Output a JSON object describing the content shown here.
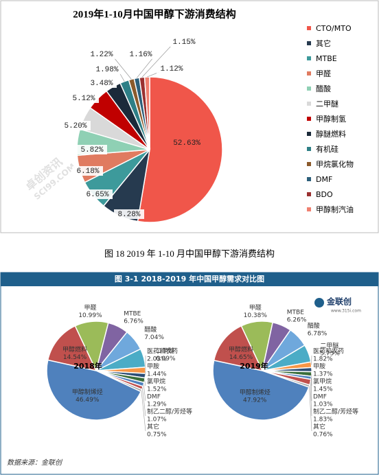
{
  "chart_data": [
    {
      "type": "pie",
      "title": "2019年1-10月中国甲醇下游消费结构",
      "categories": [
        "CTO/MTO",
        "其它",
        "MTBE",
        "甲醛",
        "醋酸",
        "二甲醚",
        "甲醇制氢",
        "醇醚燃料",
        "有机硅",
        "甲烷氯化物",
        "DMF",
        "BDO",
        "甲醇制汽油"
      ],
      "values": [
        52.63,
        8.28,
        6.65,
        6.18,
        5.82,
        5.2,
        5.12,
        3.48,
        1.98,
        1.22,
        1.16,
        1.15,
        1.12
      ],
      "value_labels": [
        "52.63%",
        "8.28%",
        "6.65%",
        "6.18%",
        "5.82%",
        "5.20%",
        "5.12%",
        "3.48%",
        "1.98%",
        "1.22%",
        "1.16%",
        "1.15%",
        "1.12%"
      ],
      "colors": [
        "#f0564a",
        "#263a4f",
        "#3d9a9b",
        "#e07b60",
        "#8fd0b4",
        "#d9d9d9",
        "#c00000",
        "#1b2a3a",
        "#2e7f86",
        "#8b5a2b",
        "#2c5f7a",
        "#9a3030",
        "#f08070"
      ],
      "legend": "right"
    },
    {
      "type": "pie",
      "title": "2018年",
      "categories": [
        "甲醛",
        "MTBE",
        "醋酸",
        "二甲醚",
        "医药和农药",
        "甲胺",
        "氯甲烷",
        "DMF",
        "制乙二醇/芳烃等",
        "其它",
        "甲醇制烯烃",
        "甲醇燃料"
      ],
      "values": [
        10.99,
        6.76,
        7.04,
        6.09,
        2.03,
        1.44,
        1.52,
        1.29,
        1.07,
        0.75,
        46.49,
        14.54
      ],
      "value_labels": [
        "10.99%",
        "6.76%",
        "7.04%",
        "6.09%",
        "2.03%",
        "1.44%",
        "1.52%",
        "1.29%",
        "1.07%",
        "0.75%",
        "46.49%",
        "14.54%"
      ],
      "colors": [
        "#9bbb59",
        "#8064a2",
        "#6fa8dc",
        "#4bacc6",
        "#f79646",
        "#2c4d75",
        "#3a6e3a",
        "#4f81bd",
        "#c0504d",
        "#a0a0a0",
        "#4f81bd",
        "#c0504d"
      ]
    },
    {
      "type": "pie",
      "title": "2019年",
      "categories": [
        "甲醛",
        "MTBE",
        "醋酸",
        "二甲醚",
        "医药和农药",
        "甲胺",
        "氯甲烷",
        "DMF",
        "制乙二醇/芳烃等",
        "其它",
        "甲醇制烯烃",
        "甲醇燃料"
      ],
      "values": [
        10.38,
        6.26,
        6.78,
        5.75,
        1.82,
        1.37,
        1.45,
        1.03,
        1.83,
        0.76,
        47.92,
        14.65
      ],
      "value_labels": [
        "10.38%",
        "6.26%",
        "6.78%",
        "5.75%",
        "1.82%",
        "1.37%",
        "1.45%",
        "1.03%",
        "1.83%",
        "0.76%",
        "47.92%",
        "14.65%"
      ],
      "colors": [
        "#9bbb59",
        "#8064a2",
        "#6fa8dc",
        "#4bacc6",
        "#f79646",
        "#2c4d75",
        "#3a6e3a",
        "#4f81bd",
        "#c0504d",
        "#a0a0a0",
        "#4f81bd",
        "#c0504d"
      ]
    }
  ],
  "caption": "图 18 2019 年 1-10 月中国甲醇下游消费结构",
  "panel": {
    "title": "图 3-1 2018-2019 年中国甲醇需求对比图",
    "logo": "金联创",
    "logo_url": "www.315i.com",
    "source": "数据来源：金联创"
  },
  "watermark": {
    "name": "卓创资讯",
    "site": "SCI99.COM"
  }
}
